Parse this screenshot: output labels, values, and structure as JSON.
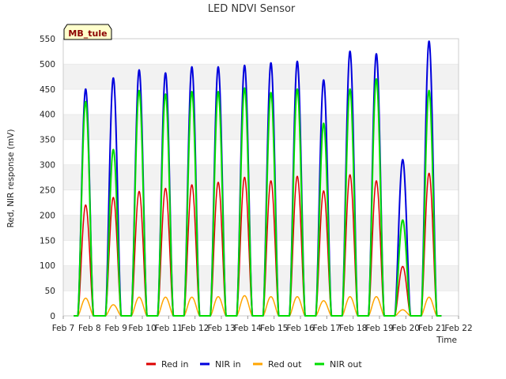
{
  "chart_data": {
    "type": "line",
    "title": "LED NDVI Sensor",
    "site_label": "MB_tule",
    "xlabel": "Time",
    "ylabel": "Red, NIR response (mV)",
    "ylim": [
      0,
      550
    ],
    "yticks": [
      0,
      50,
      100,
      150,
      200,
      250,
      300,
      350,
      400,
      450,
      500,
      550
    ],
    "xlim": [
      7,
      22
    ],
    "xticks": [
      {
        "x": 7,
        "label": "Feb 7"
      },
      {
        "x": 8,
        "label": "Feb 8"
      },
      {
        "x": 9,
        "label": "Feb 9"
      },
      {
        "x": 10,
        "label": "Feb 10"
      },
      {
        "x": 11,
        "label": "Feb 11"
      },
      {
        "x": 12,
        "label": "Feb 12"
      },
      {
        "x": 13,
        "label": "Feb 13"
      },
      {
        "x": 14,
        "label": "Feb 14"
      },
      {
        "x": 15,
        "label": "Feb 15"
      },
      {
        "x": 16,
        "label": "Feb 16"
      },
      {
        "x": 17,
        "label": "Feb 17"
      },
      {
        "x": 18,
        "label": "Feb 18"
      },
      {
        "x": 19,
        "label": "Feb 19"
      },
      {
        "x": 20,
        "label": "Feb 20"
      },
      {
        "x": 21,
        "label": "Feb 21"
      },
      {
        "x": 22,
        "label": "Feb 22"
      }
    ],
    "x_range_data": [
      7.4,
      21.35
    ],
    "grid": "horizontal bands",
    "legend_position": "bottom",
    "day_peaks": [
      {
        "x": 7.85,
        "red_in": 220,
        "nir_in": 450,
        "red_out": 35,
        "nir_out": 425
      },
      {
        "x": 8.9,
        "red_in": 235,
        "nir_in": 472,
        "red_out": 22,
        "nir_out": 330
      },
      {
        "x": 9.88,
        "red_in": 247,
        "nir_in": 488,
        "red_out": 37,
        "nir_out": 447
      },
      {
        "x": 10.88,
        "red_in": 253,
        "nir_in": 482,
        "red_out": 37,
        "nir_out": 440
      },
      {
        "x": 11.88,
        "red_in": 260,
        "nir_in": 494,
        "red_out": 37,
        "nir_out": 445
      },
      {
        "x": 12.88,
        "red_in": 265,
        "nir_in": 494,
        "red_out": 38,
        "nir_out": 445
      },
      {
        "x": 13.88,
        "red_in": 275,
        "nir_in": 497,
        "red_out": 40,
        "nir_out": 452
      },
      {
        "x": 14.88,
        "red_in": 268,
        "nir_in": 502,
        "red_out": 38,
        "nir_out": 443
      },
      {
        "x": 15.88,
        "red_in": 277,
        "nir_in": 505,
        "red_out": 38,
        "nir_out": 450
      },
      {
        "x": 16.88,
        "red_in": 248,
        "nir_in": 468,
        "red_out": 30,
        "nir_out": 382
      },
      {
        "x": 17.88,
        "red_in": 280,
        "nir_in": 525,
        "red_out": 38,
        "nir_out": 450
      },
      {
        "x": 18.88,
        "red_in": 268,
        "nir_in": 520,
        "red_out": 38,
        "nir_out": 470
      },
      {
        "x": 19.88,
        "red_in": 98,
        "nir_in": 310,
        "red_out": 12,
        "nir_out": 190
      },
      {
        "x": 20.88,
        "red_in": 283,
        "nir_in": 545,
        "red_out": 37,
        "nir_out": 447
      }
    ],
    "series": [
      {
        "name": "Red in",
        "key": "red_in",
        "color": "#dd0000"
      },
      {
        "name": "NIR in",
        "key": "nir_in",
        "color": "#0000dd"
      },
      {
        "name": "Red out",
        "key": "red_out",
        "color": "#ffa500"
      },
      {
        "name": "NIR out",
        "key": "nir_out",
        "color": "#00dd00"
      }
    ],
    "band_colors": [
      "#ffffff",
      "#f2f2f2"
    ]
  }
}
